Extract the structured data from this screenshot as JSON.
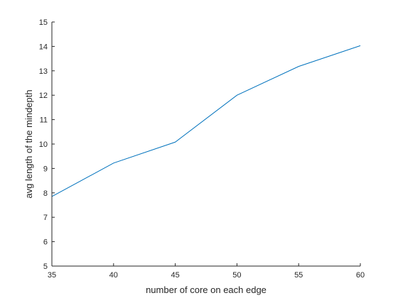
{
  "chart_data": {
    "type": "line",
    "title": "",
    "xlabel": "number of core on each edge",
    "ylabel": "avg length of the mindepth",
    "xlim": [
      35,
      60
    ],
    "ylim": [
      5,
      15
    ],
    "xticks": [
      35,
      40,
      45,
      50,
      55,
      60
    ],
    "yticks": [
      5,
      6,
      7,
      8,
      9,
      10,
      11,
      12,
      13,
      14,
      15
    ],
    "grid": false,
    "series": [
      {
        "color": "#0072BD",
        "x": [
          35,
          40,
          45,
          50,
          55,
          60
        ],
        "y": [
          7.85,
          9.22,
          10.08,
          12.0,
          13.18,
          14.03
        ]
      }
    ]
  }
}
